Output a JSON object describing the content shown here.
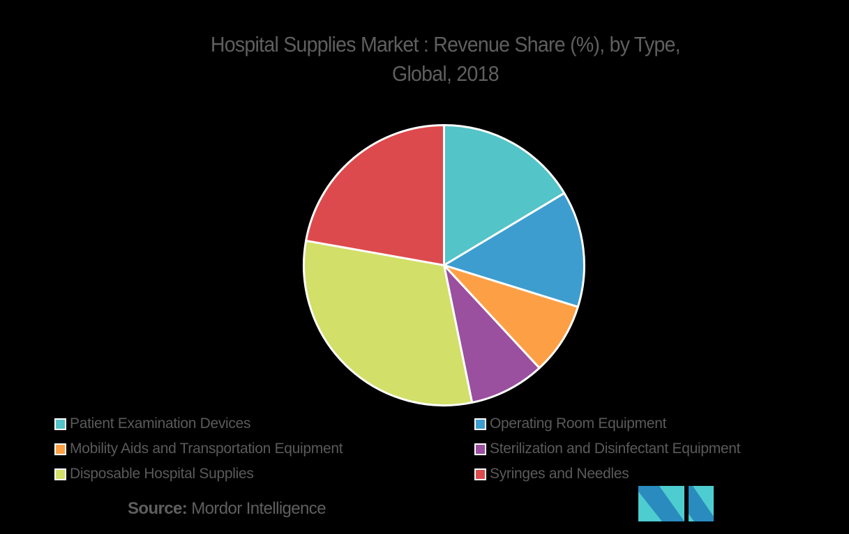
{
  "title": {
    "line1": "Hospital Supplies Market : Revenue Share (%), by  Type,",
    "line2": "Global, 2018"
  },
  "source": {
    "label": "Source:",
    "value": "Mordor Intelligence"
  },
  "logo": {
    "icon": "mordor-intelligence-logo-icon",
    "colors": [
      "#2a8bbf",
      "#4ecdd0"
    ]
  },
  "chart_data": {
    "type": "pie",
    "title": "Hospital Supplies Market : Revenue Share (%), by  Type, Global, 2018",
    "start_angle_deg": 0,
    "direction": "clockwise",
    "legend_position": "bottom",
    "categories": [
      "Patient Examination Devices",
      "Operating Room Equipment",
      "Mobility Aids and Transportation Equipment",
      "Sterilization and Disinfectant Equipment",
      "Disposable Hospital Supplies",
      "Syringes and Needles"
    ],
    "values": [
      16.4,
      13.4,
      8.3,
      8.7,
      31.0,
      22.2
    ],
    "colors": [
      "#53c4c7",
      "#3d9dcf",
      "#fda045",
      "#9a4f9f",
      "#d2df68",
      "#dd4a4d"
    ],
    "unit": "%",
    "data_labels": false
  },
  "legend": {
    "items": [
      {
        "label": "Patient Examination Devices",
        "color": "#53c4c7"
      },
      {
        "label": "Operating Room Equipment",
        "color": "#3d9dcf"
      },
      {
        "label": "Mobility Aids and Transportation Equipment",
        "color": "#fda045"
      },
      {
        "label": "Sterilization and Disinfectant Equipment",
        "color": "#9a4f9f"
      },
      {
        "label": "Disposable Hospital Supplies",
        "color": "#d2df68"
      },
      {
        "label": "Syringes and Needles",
        "color": "#dd4a4d"
      }
    ]
  }
}
